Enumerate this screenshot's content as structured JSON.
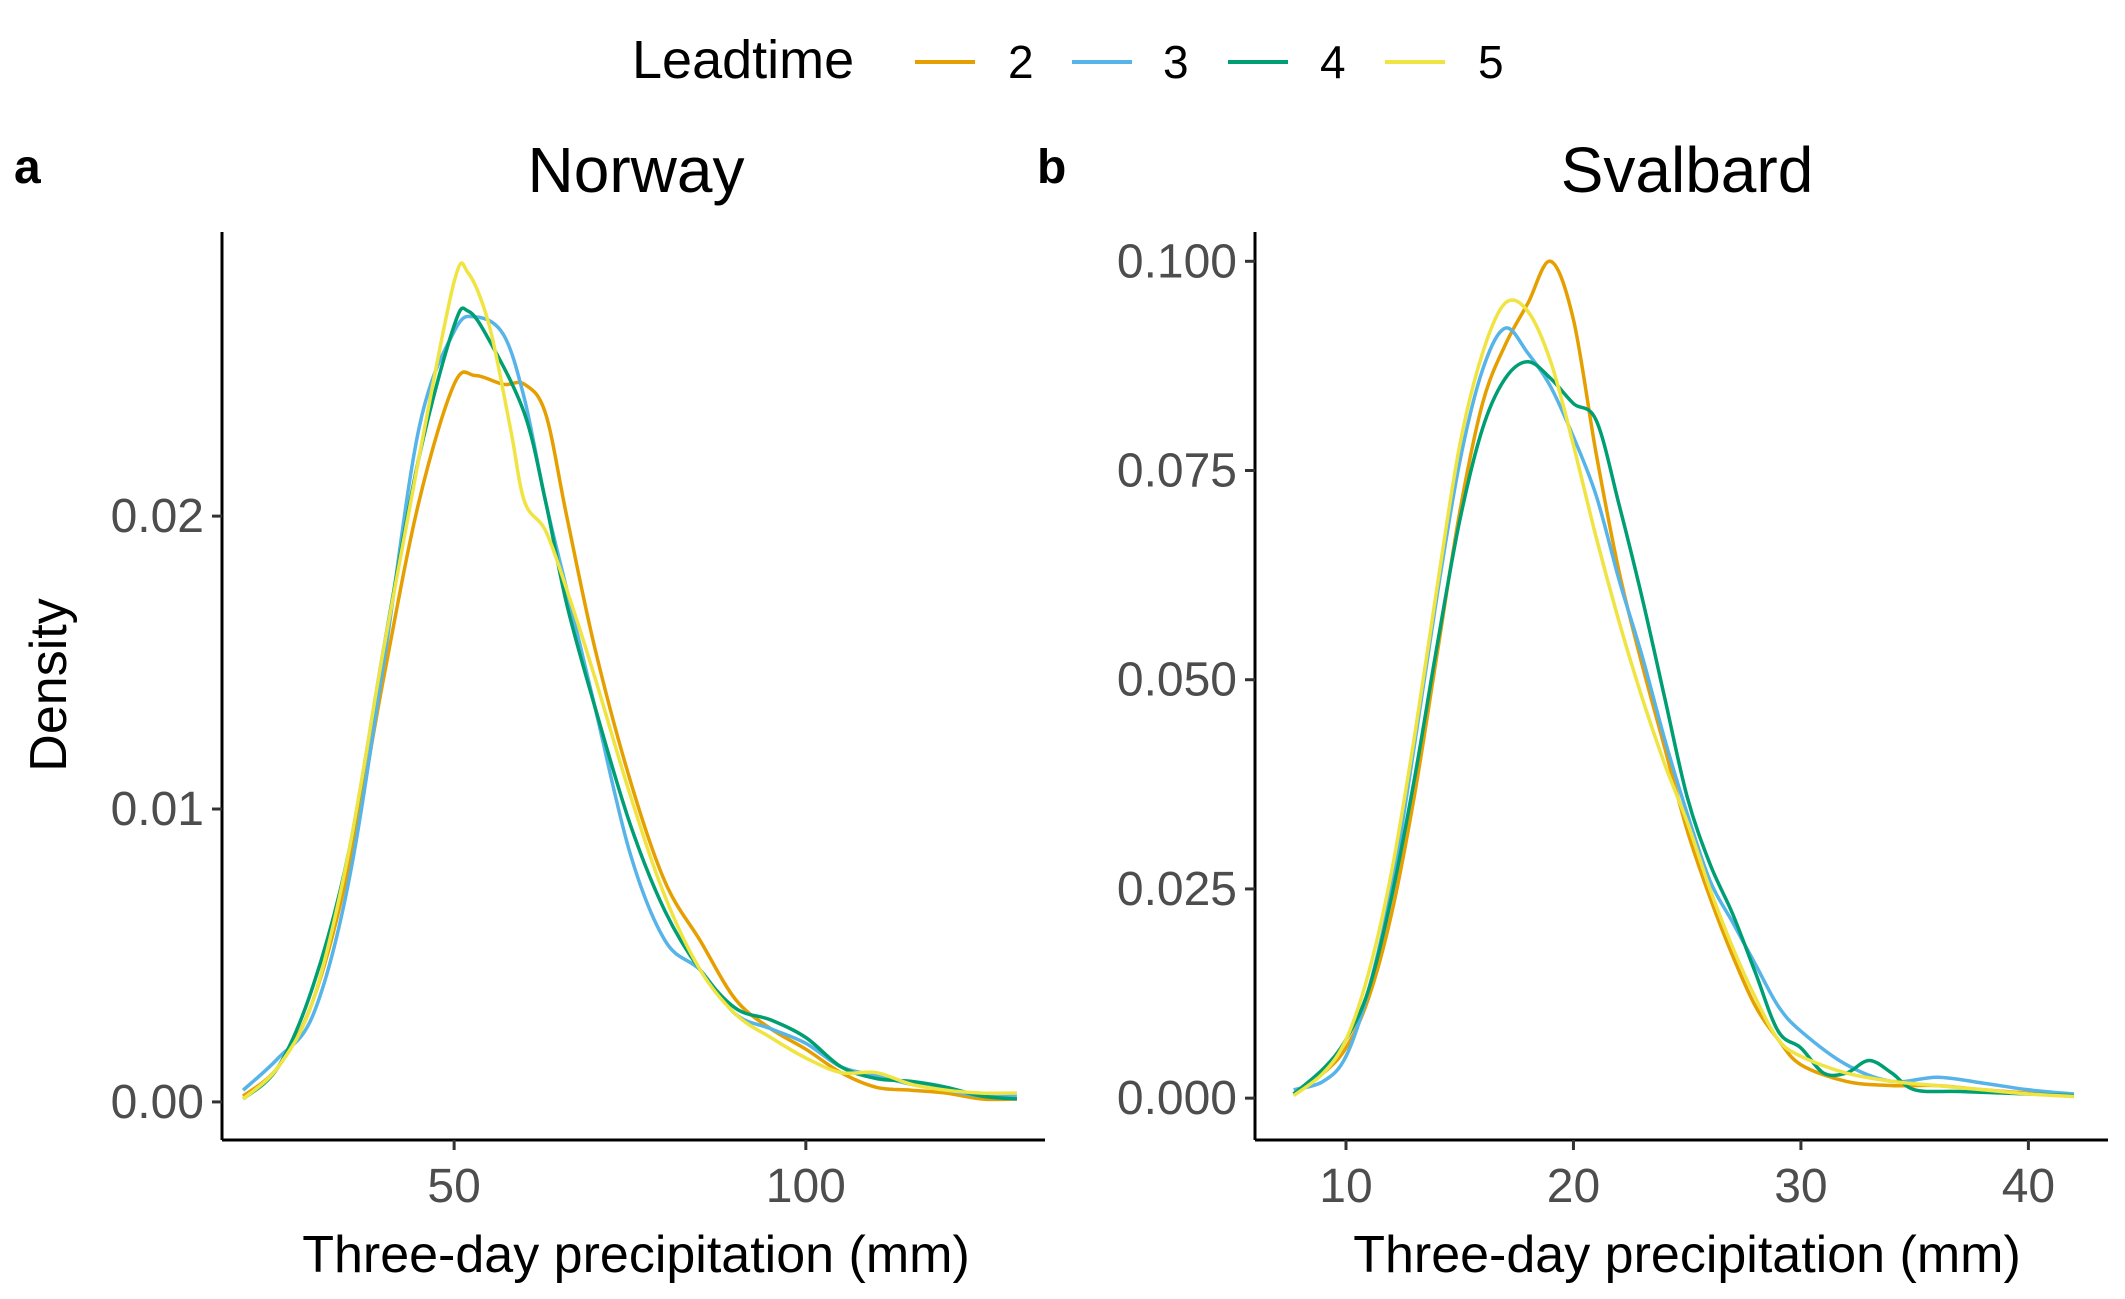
{
  "legend": {
    "title": "Leadtime",
    "items": [
      {
        "label": "2",
        "color": "#E69F00"
      },
      {
        "label": "3",
        "color": "#56B4E9"
      },
      {
        "label": "4",
        "color": "#009E73"
      },
      {
        "label": "5",
        "color": "#F0E442"
      }
    ]
  },
  "chart_data": [
    {
      "type": "line",
      "tag": "a",
      "title": "Norway",
      "xlabel": "Three-day precipitation (mm)",
      "ylabel": "Density",
      "xlim": [
        17,
        134
      ],
      "ylim": [
        -0.0013,
        0.0297
      ],
      "x_ticks": [
        50,
        100
      ],
      "x_tick_labels": [
        "50",
        "100"
      ],
      "y_ticks": [
        0,
        0.01,
        0.02
      ],
      "y_tick_labels": [
        "0.00",
        "0.01",
        "0.02"
      ],
      "grid": false,
      "legend_position": "top",
      "series": [
        {
          "name": "2",
          "color": "#E69F00",
          "points": [
            [
              20,
              0.0002
            ],
            [
              25,
              0.0012
            ],
            [
              30,
              0.0035
            ],
            [
              35,
              0.008
            ],
            [
              40,
              0.0145
            ],
            [
              45,
              0.0205
            ],
            [
              50,
              0.0245
            ],
            [
              53,
              0.0248
            ],
            [
              57,
              0.0245
            ],
            [
              60,
              0.0245
            ],
            [
              63,
              0.0235
            ],
            [
              66,
              0.02
            ],
            [
              70,
              0.0155
            ],
            [
              75,
              0.011
            ],
            [
              80,
              0.0075
            ],
            [
              85,
              0.0055
            ],
            [
              90,
              0.0035
            ],
            [
              95,
              0.0025
            ],
            [
              100,
              0.0018
            ],
            [
              105,
              0.001
            ],
            [
              110,
              0.0005
            ],
            [
              115,
              0.0004
            ],
            [
              120,
              0.0003
            ],
            [
              125,
              0.0001
            ],
            [
              130,
              0.0001
            ]
          ]
        },
        {
          "name": "3",
          "color": "#56B4E9",
          "points": [
            [
              20,
              0.0004
            ],
            [
              25,
              0.0015
            ],
            [
              30,
              0.003
            ],
            [
              35,
              0.0075
            ],
            [
              40,
              0.015
            ],
            [
              45,
              0.023
            ],
            [
              50,
              0.0263
            ],
            [
              53,
              0.0268
            ],
            [
              57,
              0.0262
            ],
            [
              60,
              0.024
            ],
            [
              63,
              0.0205
            ],
            [
              66,
              0.0175
            ],
            [
              70,
              0.0135
            ],
            [
              75,
              0.0085
            ],
            [
              80,
              0.0055
            ],
            [
              85,
              0.0045
            ],
            [
              90,
              0.003
            ],
            [
              95,
              0.0025
            ],
            [
              100,
              0.002
            ],
            [
              105,
              0.0012
            ],
            [
              110,
              0.0009
            ],
            [
              115,
              0.0006
            ],
            [
              120,
              0.0004
            ],
            [
              125,
              0.0002
            ],
            [
              130,
              0.0002
            ]
          ]
        },
        {
          "name": "4",
          "color": "#009E73",
          "points": [
            [
              20,
              0.0001
            ],
            [
              25,
              0.0012
            ],
            [
              30,
              0.004
            ],
            [
              35,
              0.0085
            ],
            [
              40,
              0.0155
            ],
            [
              45,
              0.022
            ],
            [
              50,
              0.0265
            ],
            [
              52,
              0.027
            ],
            [
              55,
              0.026
            ],
            [
              60,
              0.0235
            ],
            [
              63,
              0.0205
            ],
            [
              66,
              0.017
            ],
            [
              70,
              0.0135
            ],
            [
              75,
              0.0095
            ],
            [
              80,
              0.0065
            ],
            [
              85,
              0.0045
            ],
            [
              90,
              0.0032
            ],
            [
              95,
              0.0028
            ],
            [
              100,
              0.0022
            ],
            [
              105,
              0.0012
            ],
            [
              110,
              0.0008
            ],
            [
              115,
              0.0007
            ],
            [
              120,
              0.0005
            ],
            [
              125,
              0.0002
            ],
            [
              130,
              0.0001
            ]
          ]
        },
        {
          "name": "5",
          "color": "#F0E442",
          "points": [
            [
              20,
              0.0001
            ],
            [
              25,
              0.0012
            ],
            [
              30,
              0.0035
            ],
            [
              35,
              0.0085
            ],
            [
              40,
              0.0155
            ],
            [
              45,
              0.022
            ],
            [
              50,
              0.028
            ],
            [
              52,
              0.0283
            ],
            [
              55,
              0.0265
            ],
            [
              58,
              0.023
            ],
            [
              60,
              0.0205
            ],
            [
              63,
              0.0195
            ],
            [
              66,
              0.0175
            ],
            [
              70,
              0.0145
            ],
            [
              75,
              0.0105
            ],
            [
              80,
              0.007
            ],
            [
              85,
              0.0045
            ],
            [
              90,
              0.003
            ],
            [
              95,
              0.0022
            ],
            [
              100,
              0.0015
            ],
            [
              105,
              0.001
            ],
            [
              110,
              0.001
            ],
            [
              115,
              0.0006
            ],
            [
              120,
              0.0004
            ],
            [
              125,
              0.0003
            ],
            [
              130,
              0.0003
            ]
          ]
        }
      ]
    },
    {
      "type": "line",
      "tag": "b",
      "title": "Svalbard",
      "xlabel": "Three-day precipitation (mm)",
      "ylabel": "",
      "xlim": [
        6,
        43.5
      ],
      "ylim": [
        -0.005,
        0.1035
      ],
      "x_ticks": [
        10,
        20,
        30,
        40
      ],
      "x_tick_labels": [
        "10",
        "20",
        "30",
        "40"
      ],
      "y_ticks": [
        0,
        0.025,
        0.05,
        0.075,
        0.1
      ],
      "y_tick_labels": [
        "0.000",
        "0.025",
        "0.050",
        "0.075",
        "0.100"
      ],
      "grid": false,
      "series": [
        {
          "name": "2",
          "color": "#E69F00",
          "points": [
            [
              7.7,
              0.0005
            ],
            [
              9,
              0.003
            ],
            [
              10,
              0.006
            ],
            [
              11,
              0.012
            ],
            [
              12,
              0.022
            ],
            [
              13,
              0.036
            ],
            [
              14,
              0.053
            ],
            [
              15,
              0.07
            ],
            [
              16,
              0.083
            ],
            [
              17,
              0.09
            ],
            [
              18,
              0.095
            ],
            [
              19,
              0.1
            ],
            [
              20,
              0.093
            ],
            [
              21,
              0.077
            ],
            [
              22,
              0.063
            ],
            [
              23,
              0.052
            ],
            [
              24,
              0.042
            ],
            [
              25,
              0.032
            ],
            [
              26,
              0.024
            ],
            [
              27,
              0.017
            ],
            [
              28,
              0.011
            ],
            [
              29,
              0.007
            ],
            [
              30,
              0.004
            ],
            [
              32,
              0.002
            ],
            [
              34,
              0.0015
            ],
            [
              36,
              0.0015
            ],
            [
              38,
              0.001
            ],
            [
              40,
              0.0006
            ],
            [
              42,
              0.0003
            ]
          ]
        },
        {
          "name": "3",
          "color": "#56B4E9",
          "points": [
            [
              7.7,
              0.001
            ],
            [
              9,
              0.002
            ],
            [
              10,
              0.005
            ],
            [
              11,
              0.013
            ],
            [
              12,
              0.025
            ],
            [
              13,
              0.042
            ],
            [
              14,
              0.06
            ],
            [
              15,
              0.076
            ],
            [
              16,
              0.087
            ],
            [
              17,
              0.092
            ],
            [
              18,
              0.089
            ],
            [
              19,
              0.085
            ],
            [
              20,
              0.079
            ],
            [
              21,
              0.072
            ],
            [
              22,
              0.062
            ],
            [
              23,
              0.053
            ],
            [
              24,
              0.043
            ],
            [
              25,
              0.034
            ],
            [
              26,
              0.026
            ],
            [
              27,
              0.021
            ],
            [
              28,
              0.016
            ],
            [
              29,
              0.011
            ],
            [
              30,
              0.008
            ],
            [
              32,
              0.004
            ],
            [
              34,
              0.002
            ],
            [
              36,
              0.0025
            ],
            [
              38,
              0.0018
            ],
            [
              40,
              0.001
            ],
            [
              42,
              0.0005
            ]
          ]
        },
        {
          "name": "4",
          "color": "#009E73",
          "points": [
            [
              7.7,
              0.0005
            ],
            [
              9,
              0.0035
            ],
            [
              10,
              0.007
            ],
            [
              11,
              0.013
            ],
            [
              12,
              0.024
            ],
            [
              13,
              0.038
            ],
            [
              14,
              0.054
            ],
            [
              15,
              0.069
            ],
            [
              16,
              0.08
            ],
            [
              17,
              0.086
            ],
            [
              18,
              0.088
            ],
            [
              19,
              0.086
            ],
            [
              20,
              0.083
            ],
            [
              21,
              0.081
            ],
            [
              22,
              0.071
            ],
            [
              23,
              0.06
            ],
            [
              24,
              0.048
            ],
            [
              25,
              0.036
            ],
            [
              26,
              0.028
            ],
            [
              27,
              0.022
            ],
            [
              28,
              0.015
            ],
            [
              29,
              0.008
            ],
            [
              30,
              0.006
            ],
            [
              31,
              0.003
            ],
            [
              32,
              0.003
            ],
            [
              33,
              0.0045
            ],
            [
              34,
              0.003
            ],
            [
              35,
              0.001
            ],
            [
              37,
              0.0008
            ],
            [
              40,
              0.0005
            ],
            [
              42,
              0.0003
            ]
          ]
        },
        {
          "name": "5",
          "color": "#F0E442",
          "points": [
            [
              7.7,
              0.0003
            ],
            [
              9,
              0.003
            ],
            [
              10,
              0.007
            ],
            [
              11,
              0.015
            ],
            [
              12,
              0.027
            ],
            [
              13,
              0.043
            ],
            [
              14,
              0.061
            ],
            [
              15,
              0.078
            ],
            [
              16,
              0.089
            ],
            [
              17,
              0.095
            ],
            [
              18,
              0.094
            ],
            [
              19,
              0.088
            ],
            [
              20,
              0.078
            ],
            [
              21,
              0.067
            ],
            [
              22,
              0.057
            ],
            [
              23,
              0.048
            ],
            [
              24,
              0.04
            ],
            [
              25,
              0.033
            ],
            [
              26,
              0.025
            ],
            [
              27,
              0.018
            ],
            [
              28,
              0.012
            ],
            [
              29,
              0.007
            ],
            [
              30,
              0.005
            ],
            [
              32,
              0.003
            ],
            [
              34,
              0.002
            ],
            [
              36,
              0.0015
            ],
            [
              38,
              0.001
            ],
            [
              40,
              0.0005
            ],
            [
              42,
              0.0002
            ]
          ]
        }
      ]
    }
  ]
}
